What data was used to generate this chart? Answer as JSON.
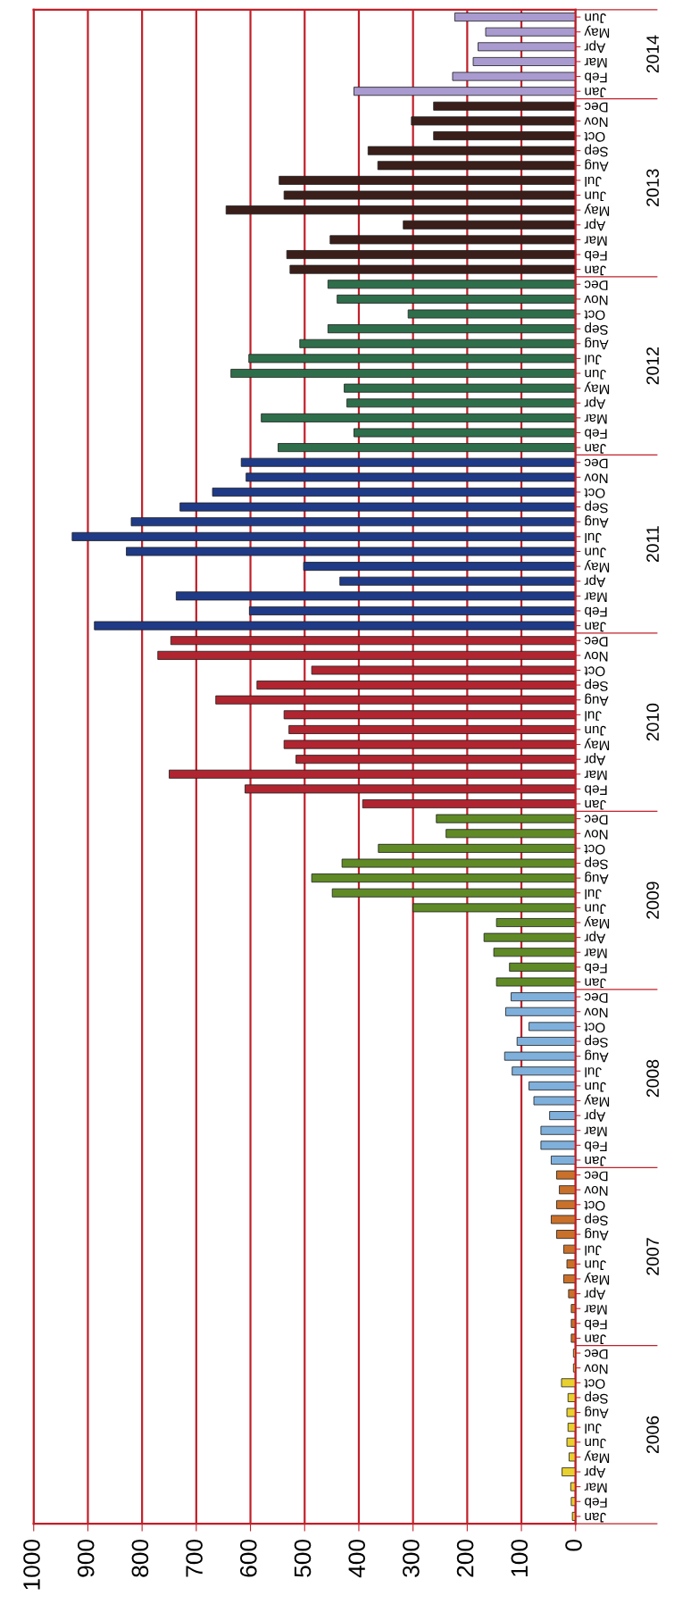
{
  "chart_data": {
    "type": "bar",
    "orientation": "horizontal",
    "categories": [
      "Jun",
      "May",
      "Apr",
      "Mar",
      "Feb",
      "Jan",
      "Dec",
      "Nov",
      "Oct",
      "Sep",
      "Aug",
      "Jul",
      "Jun",
      "May",
      "Apr",
      "Mar",
      "Feb",
      "Jan",
      "Dec",
      "Nov",
      "Oct",
      "Sep",
      "Aug",
      "Jul",
      "Jun",
      "May",
      "Apr",
      "Mar",
      "Feb",
      "Jan",
      "Dec",
      "Nov",
      "Oct",
      "Sep",
      "Aug",
      "Jul",
      "Jun",
      "May",
      "Apr",
      "Mar",
      "Feb",
      "Jan",
      "Dec",
      "Nov",
      "Oct",
      "Sep",
      "Aug",
      "Jul",
      "Jun",
      "May",
      "Apr",
      "Mar",
      "Feb",
      "Jan",
      "Dec",
      "Nov",
      "Oct",
      "Sep",
      "Aug",
      "Jul",
      "Jun",
      "May",
      "Apr",
      "Mar",
      "Feb",
      "Jan",
      "Dec",
      "Nov",
      "Oct",
      "Sep",
      "Aug",
      "Jul",
      "Jun",
      "May",
      "Apr",
      "Mar",
      "Feb",
      "Jan",
      "Dec",
      "Nov",
      "Oct",
      "Sep",
      "Aug",
      "Jul",
      "Jun",
      "May",
      "Apr",
      "Mar",
      "Feb",
      "Jan",
      "Dec",
      "Nov",
      "Oct",
      "Sep",
      "Aug",
      "Jul",
      "Jun",
      "May",
      "Apr",
      "Mar",
      "Feb",
      "Jan"
    ],
    "values": [
      223,
      166,
      180,
      189,
      227,
      409,
      262,
      303,
      262,
      383,
      365,
      547,
      538,
      645,
      318,
      453,
      533,
      527,
      457,
      440,
      309,
      457,
      509,
      603,
      636,
      427,
      422,
      580,
      409,
      549,
      617,
      608,
      670,
      730,
      820,
      929,
      829,
      502,
      435,
      737,
      602,
      888,
      747,
      771,
      487,
      588,
      664,
      538,
      529,
      538,
      516,
      750,
      610,
      393,
      257,
      239,
      364,
      431,
      487,
      449,
      300,
      146,
      169,
      151,
      122,
      146,
      119,
      129,
      86,
      108,
      131,
      117,
      86,
      77,
      48,
      64,
      64,
      45,
      35,
      30,
      35,
      45,
      35,
      22,
      16,
      22,
      13,
      8,
      8,
      8,
      4,
      4,
      26,
      14,
      16,
      14,
      16,
      12,
      25,
      9,
      8,
      6
    ],
    "colors": [
      "#a99bd0",
      "#a99bd0",
      "#a99bd0",
      "#a99bd0",
      "#a99bd0",
      "#a99bd0",
      "#3a1e1a",
      "#3a1e1a",
      "#3a1e1a",
      "#3a1e1a",
      "#3a1e1a",
      "#3a1e1a",
      "#3a1e1a",
      "#3a1e1a",
      "#3a1e1a",
      "#3a1e1a",
      "#3a1e1a",
      "#3a1e1a",
      "#2e6e4a",
      "#2e6e4a",
      "#2e6e4a",
      "#2e6e4a",
      "#2e6e4a",
      "#2e6e4a",
      "#2e6e4a",
      "#2e6e4a",
      "#2e6e4a",
      "#2e6e4a",
      "#2e6e4a",
      "#2e6e4a",
      "#1f3a86",
      "#1f3a86",
      "#1f3a86",
      "#1f3a86",
      "#1f3a86",
      "#1f3a86",
      "#1f3a86",
      "#1f3a86",
      "#1f3a86",
      "#1f3a86",
      "#1f3a86",
      "#1f3a86",
      "#b02530",
      "#b02530",
      "#b02530",
      "#b02530",
      "#b02530",
      "#b02530",
      "#b02530",
      "#b02530",
      "#b02530",
      "#b02530",
      "#b02530",
      "#b02530",
      "#5f8a25",
      "#5f8a25",
      "#5f8a25",
      "#5f8a25",
      "#5f8a25",
      "#5f8a25",
      "#5f8a25",
      "#5f8a25",
      "#5f8a25",
      "#5f8a25",
      "#5f8a25",
      "#5f8a25",
      "#7fb0dc",
      "#7fb0dc",
      "#7fb0dc",
      "#7fb0dc",
      "#7fb0dc",
      "#7fb0dc",
      "#7fb0dc",
      "#7fb0dc",
      "#7fb0dc",
      "#7fb0dc",
      "#7fb0dc",
      "#7fb0dc",
      "#c9702a",
      "#c9702a",
      "#c9702a",
      "#c9702a",
      "#c9702a",
      "#c9702a",
      "#c9702a",
      "#c9702a",
      "#c9702a",
      "#c9702a",
      "#c9702a",
      "#c9702a",
      "#e8d030",
      "#e8d030",
      "#e8d030",
      "#e8d030",
      "#e8d030",
      "#e8d030",
      "#e8d030",
      "#e8d030",
      "#e8d030",
      "#e8d030",
      "#e8d030",
      "#e8d030"
    ],
    "xlim": [
      1000,
      0
    ],
    "xticks": [
      0,
      100,
      200,
      300,
      400,
      500,
      600,
      700,
      800,
      900,
      1000
    ],
    "grid": "x",
    "annotations": [
      "2014",
      "2013",
      "2012",
      "2011",
      "2010",
      "2009",
      "2008",
      "2007",
      "2006"
    ]
  }
}
